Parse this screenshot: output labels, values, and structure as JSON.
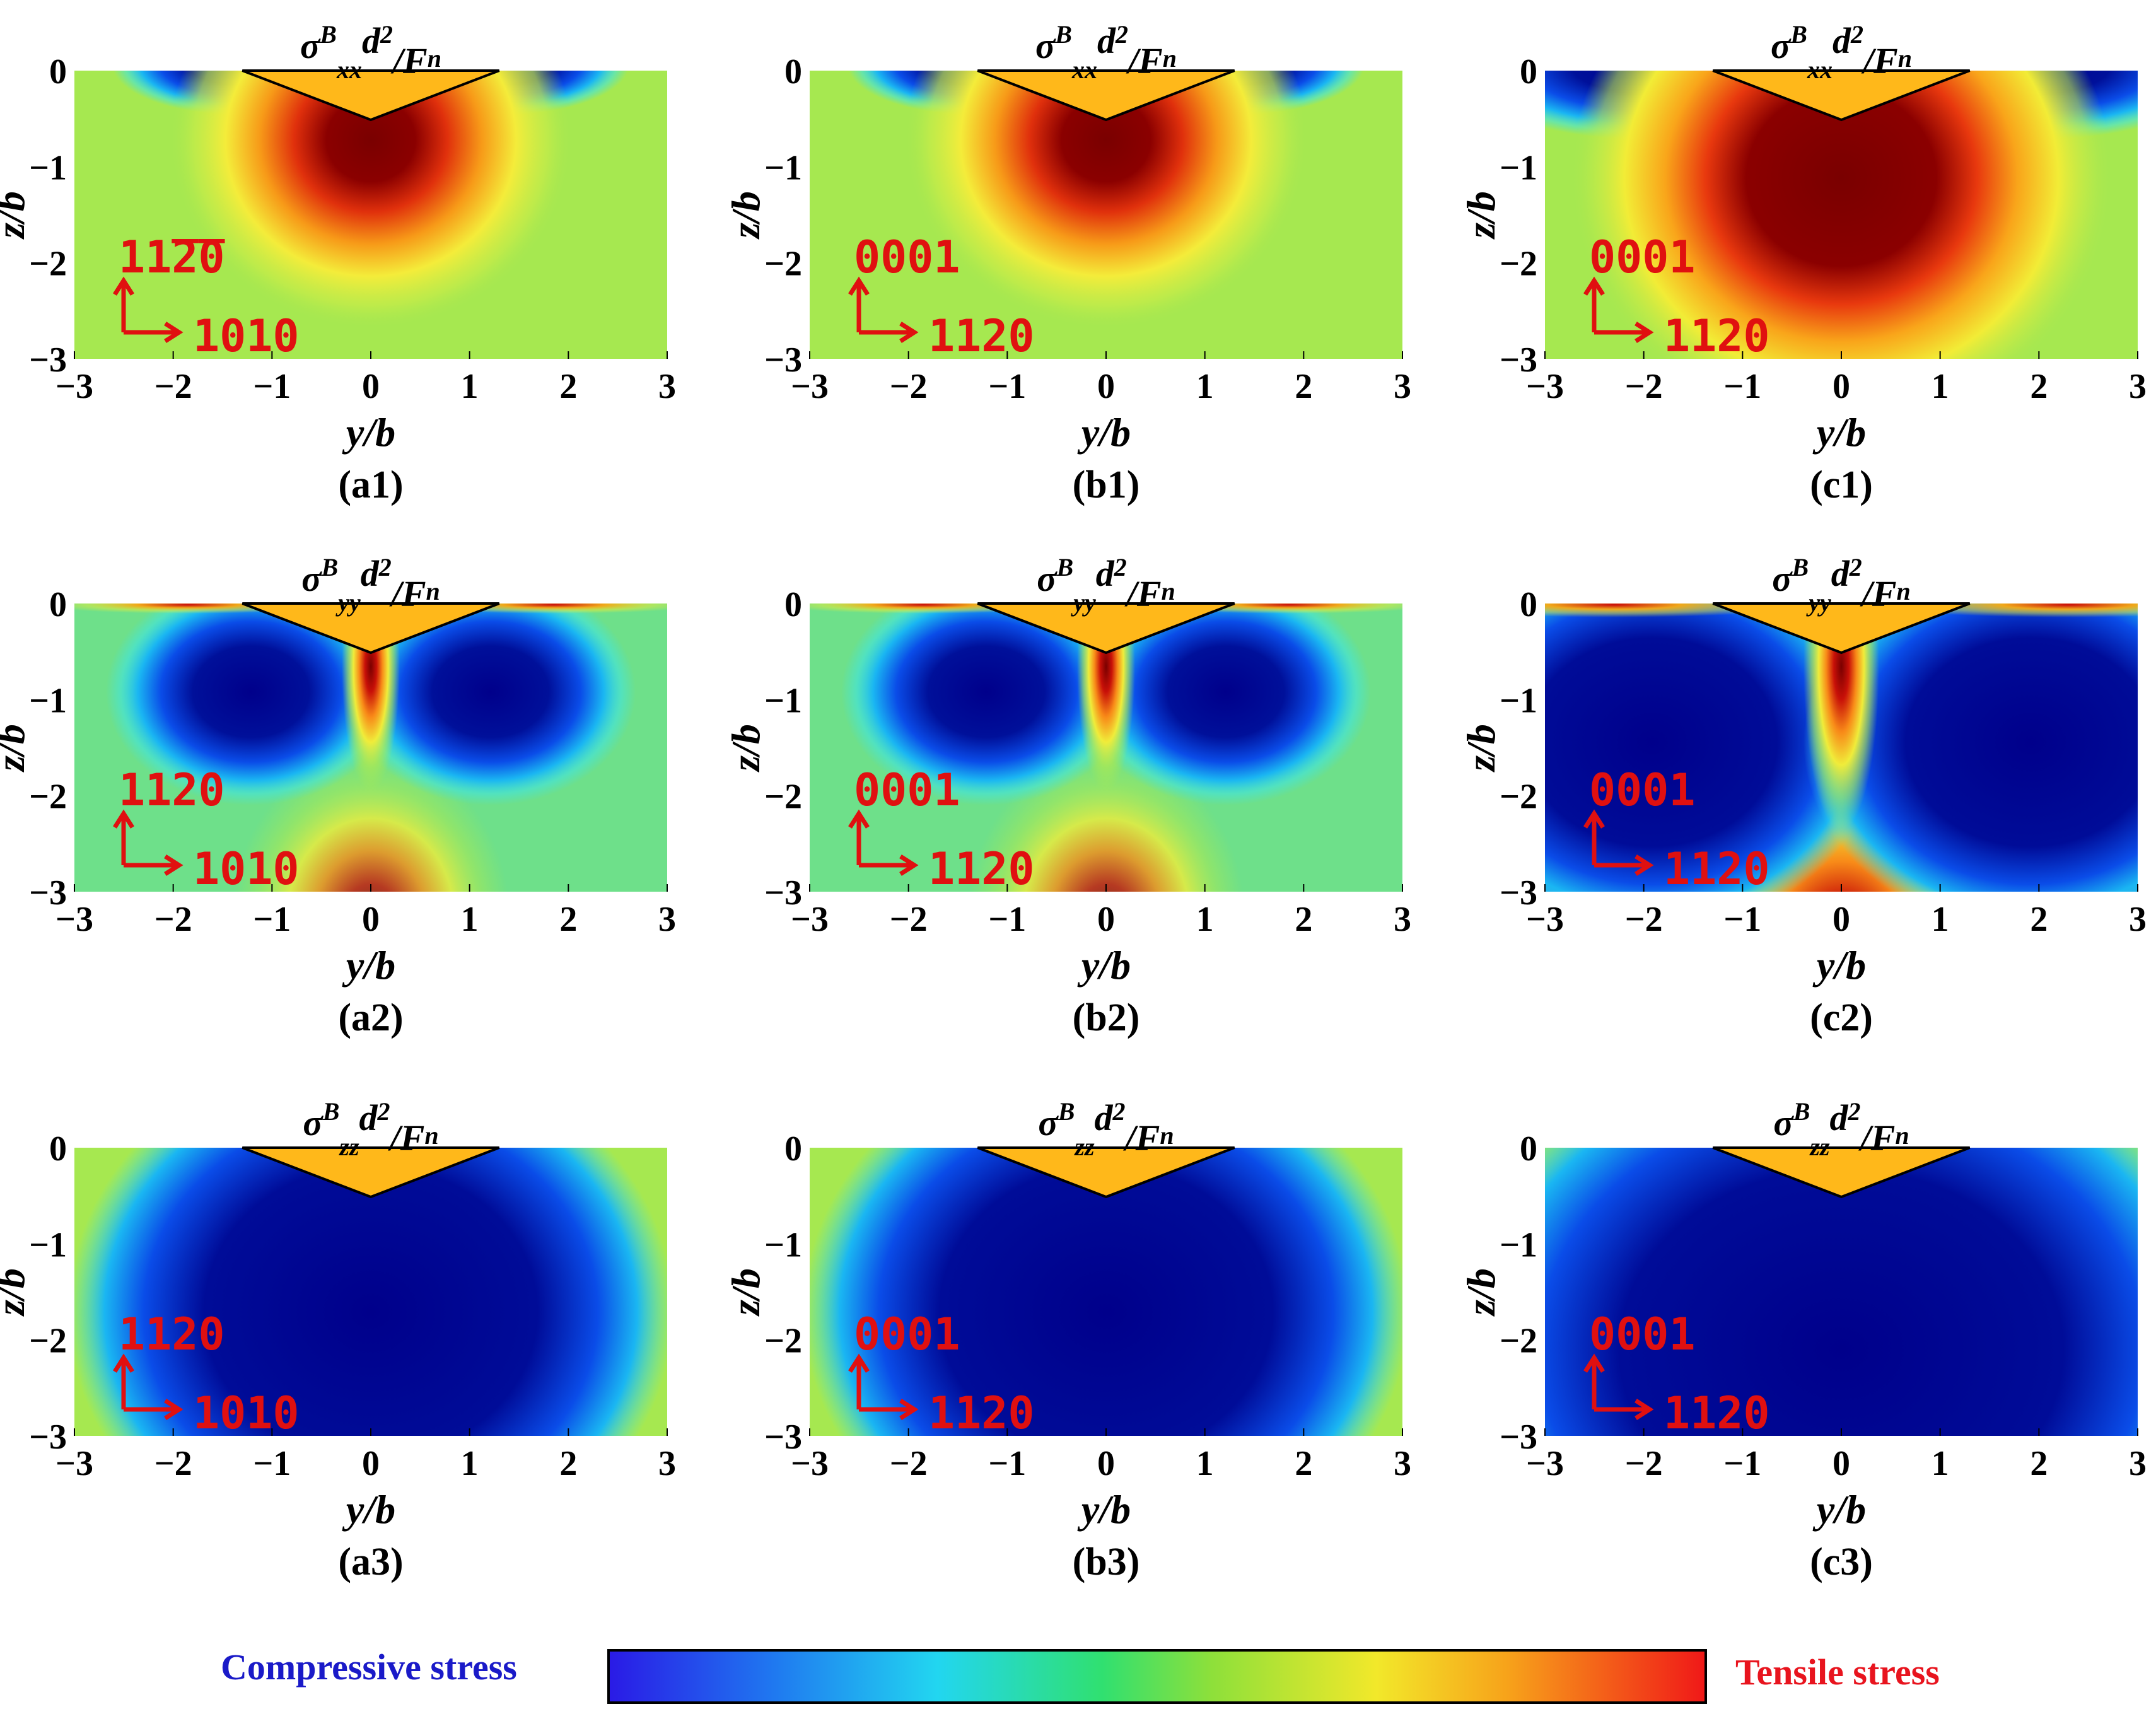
{
  "figure": {
    "colorbar": {
      "left_label": "Compressive stress",
      "right_label": "Tensile stress",
      "left_color": "#1a1ac8",
      "right_color": "#e8141e"
    }
  },
  "chart_data": [
    {
      "id": "a1",
      "type": "heatmap",
      "caption": "(a1)",
      "component": "xx",
      "title": "σ^B_xx d²/F_n",
      "xlabel": "y/b",
      "ylabel": "z/b",
      "xlim": [
        -3,
        3
      ],
      "ylim": [
        -3,
        0
      ],
      "x_ticks": [
        "−3",
        "−2",
        "−1",
        "0",
        "1",
        "2",
        "3"
      ],
      "y_ticks": [
        "0",
        "−1",
        "−2",
        "−3"
      ],
      "orientation": {
        "vertical": "11̅2̅0",
        "horizontal": "1010"
      }
    },
    {
      "id": "b1",
      "type": "heatmap",
      "caption": "(b1)",
      "component": "xx",
      "title": "σ^B_xx d²/F_n",
      "xlabel": "y/b",
      "ylabel": "z/b",
      "xlim": [
        -3,
        3
      ],
      "ylim": [
        -3,
        0
      ],
      "x_ticks": [
        "−3",
        "−2",
        "−1",
        "0",
        "1",
        "2",
        "3"
      ],
      "y_ticks": [
        "0",
        "−1",
        "−2",
        "−3"
      ],
      "orientation": {
        "vertical": "0001",
        "horizontal": "1120"
      }
    },
    {
      "id": "c1",
      "type": "heatmap",
      "caption": "(c1)",
      "component": "xx",
      "title": "σ^B_xx d²/F_n",
      "xlabel": "y/b",
      "ylabel": "z/b",
      "xlim": [
        -3,
        3
      ],
      "ylim": [
        -3,
        0
      ],
      "x_ticks": [
        "−3",
        "−2",
        "−1",
        "0",
        "1",
        "2",
        "3"
      ],
      "y_ticks": [
        "0",
        "−1",
        "−2",
        "−3"
      ],
      "orientation": {
        "vertical": "0001",
        "horizontal": "1120"
      }
    },
    {
      "id": "a2",
      "type": "heatmap",
      "caption": "(a2)",
      "component": "yy",
      "title": "σ^B_yy d²/F_n",
      "xlabel": "y/b",
      "ylabel": "z/b",
      "xlim": [
        -3,
        3
      ],
      "ylim": [
        -3,
        0
      ],
      "x_ticks": [
        "−3",
        "−2",
        "−1",
        "0",
        "1",
        "2",
        "3"
      ],
      "y_ticks": [
        "0",
        "−1",
        "−2",
        "−3"
      ],
      "orientation": {
        "vertical": "1120",
        "horizontal": "1010"
      }
    },
    {
      "id": "b2",
      "type": "heatmap",
      "caption": "(b2)",
      "component": "yy",
      "title": "σ^B_yy d²/F_n",
      "xlabel": "y/b",
      "ylabel": "z/b",
      "xlim": [
        -3,
        3
      ],
      "ylim": [
        -3,
        0
      ],
      "x_ticks": [
        "−3",
        "−2",
        "−1",
        "0",
        "1",
        "2",
        "3"
      ],
      "y_ticks": [
        "0",
        "−1",
        "−2",
        "−3"
      ],
      "orientation": {
        "vertical": "0001",
        "horizontal": "1120"
      }
    },
    {
      "id": "c2",
      "type": "heatmap",
      "caption": "(c2)",
      "component": "yy",
      "title": "σ^B_yy d²/F_n",
      "xlabel": "y/b",
      "ylabel": "z/b",
      "xlim": [
        -3,
        3
      ],
      "ylim": [
        -3,
        0
      ],
      "x_ticks": [
        "−3",
        "−2",
        "−1",
        "0",
        "1",
        "2",
        "3"
      ],
      "y_ticks": [
        "0",
        "−1",
        "−2",
        "−3"
      ],
      "orientation": {
        "vertical": "0001",
        "horizontal": "1120"
      }
    },
    {
      "id": "a3",
      "type": "heatmap",
      "caption": "(a3)",
      "component": "zz",
      "title": "σ^B_zz d²/F_n",
      "xlabel": "y/b",
      "ylabel": "z/b",
      "xlim": [
        -3,
        3
      ],
      "ylim": [
        -3,
        0
      ],
      "x_ticks": [
        "−3",
        "−2",
        "−1",
        "0",
        "1",
        "2",
        "3"
      ],
      "y_ticks": [
        "0",
        "−1",
        "−2",
        "−3"
      ],
      "orientation": {
        "vertical": "1120",
        "horizontal": "1010"
      }
    },
    {
      "id": "b3",
      "type": "heatmap",
      "caption": "(b3)",
      "component": "zz",
      "title": "σ^B_zz d²/F_n",
      "xlabel": "y/b",
      "ylabel": "z/b",
      "xlim": [
        -3,
        3
      ],
      "ylim": [
        -3,
        0
      ],
      "x_ticks": [
        "−3",
        "−2",
        "−1",
        "0",
        "1",
        "2",
        "3"
      ],
      "y_ticks": [
        "0",
        "−1",
        "−2",
        "−3"
      ],
      "orientation": {
        "vertical": "0001",
        "horizontal": "1120"
      }
    },
    {
      "id": "c3",
      "type": "heatmap",
      "caption": "(c3)",
      "component": "zz",
      "title": "σ^B_zz d²/F_n",
      "xlabel": "y/b",
      "ylabel": "z/b",
      "xlim": [
        -3,
        3
      ],
      "ylim": [
        -3,
        0
      ],
      "x_ticks": [
        "−3",
        "−2",
        "−1",
        "0",
        "1",
        "2",
        "3"
      ],
      "y_ticks": [
        "0",
        "−1",
        "−2",
        "−3"
      ],
      "orientation": {
        "vertical": "0001",
        "horizontal": "1120"
      }
    }
  ]
}
